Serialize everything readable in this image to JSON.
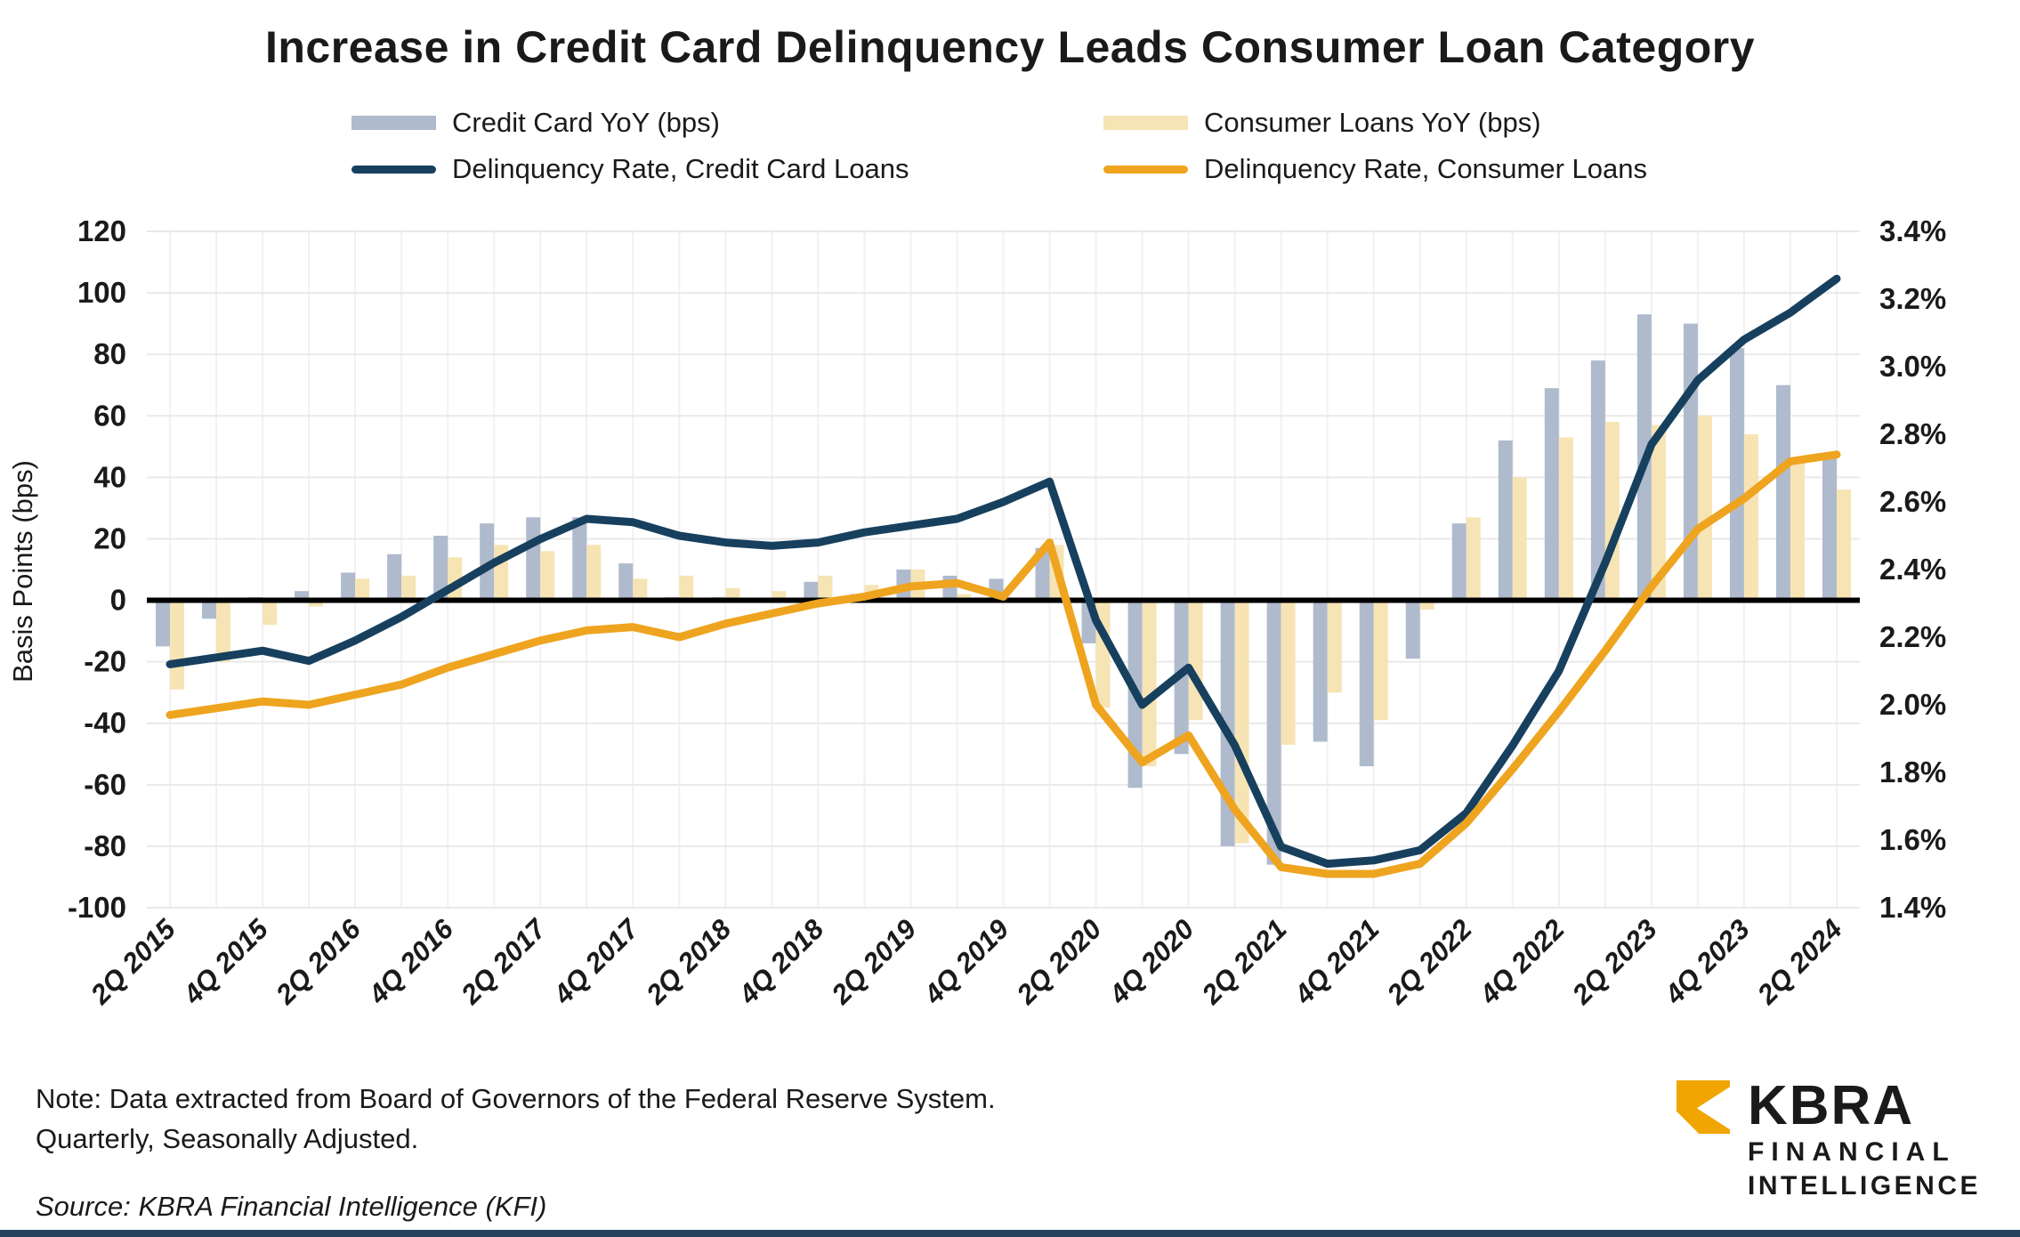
{
  "title": "Increase in Credit Card Delinquency Leads Consumer Loan Category",
  "legend": {
    "items": [
      {
        "label": "Credit Card YoY (bps)",
        "swatch": "bar",
        "color": "#AFBACD"
      },
      {
        "label": "Consumer Loans YoY (bps)",
        "swatch": "bar",
        "color": "#F7E4B4"
      },
      {
        "label": "Delinquency Rate, Credit Card Loans",
        "swatch": "line",
        "color": "#17405E"
      },
      {
        "label": "Delinquency Rate, Consumer Loans",
        "swatch": "line",
        "color": "#EEA41F"
      }
    ]
  },
  "axes": {
    "y_left": {
      "title": "Basis Points (bps)",
      "ticks": [
        120,
        100,
        80,
        60,
        40,
        20,
        0,
        -20,
        -40,
        -60,
        -80,
        -100
      ],
      "min": -100,
      "max": 120
    },
    "y_right": {
      "ticks": [
        "3.4%",
        "3.2%",
        "3.0%",
        "2.8%",
        "2.6%",
        "2.4%",
        "2.2%",
        "2.0%",
        "1.8%",
        "1.6%",
        "1.4%"
      ],
      "min": 1.4,
      "max": 3.4
    },
    "x_label_every": 2
  },
  "chart_data": {
    "type": "combo-bar-line",
    "title": "Increase in Credit Card Delinquency Leads Consumer Loan Category",
    "xlabel": "",
    "ylabel_left": "Basis Points (bps)",
    "ylim_left": [
      -100,
      120
    ],
    "ylim_right": [
      1.4,
      3.4
    ],
    "grid": "horizontal-and-vertical-light",
    "legend_position": "top",
    "categories": [
      "2Q 2015",
      "3Q 2015",
      "4Q 2015",
      "1Q 2016",
      "2Q 2016",
      "3Q 2016",
      "4Q 2016",
      "1Q 2017",
      "2Q 2017",
      "3Q 2017",
      "4Q 2017",
      "1Q 2018",
      "2Q 2018",
      "3Q 2018",
      "4Q 2018",
      "1Q 2019",
      "2Q 2019",
      "3Q 2019",
      "4Q 2019",
      "1Q 2020",
      "2Q 2020",
      "3Q 2020",
      "4Q 2020",
      "1Q 2021",
      "2Q 2021",
      "3Q 2021",
      "4Q 2021",
      "1Q 2022",
      "2Q 2022",
      "3Q 2022",
      "4Q 2022",
      "1Q 2023",
      "2Q 2023",
      "3Q 2023",
      "4Q 2023",
      "1Q 2024",
      "2Q 2024"
    ],
    "series": [
      {
        "name": "Credit Card YoY (bps)",
        "type": "bar",
        "axis": "left",
        "color": "#AFBACD",
        "values": [
          -15,
          -6,
          1,
          3,
          9,
          15,
          21,
          25,
          27,
          27,
          12,
          1,
          1,
          0,
          6,
          2,
          10,
          8,
          7,
          17,
          -14,
          -61,
          -50,
          -80,
          -86,
          -46,
          -54,
          -19,
          25,
          52,
          69,
          78,
          93,
          90,
          82,
          70,
          48
        ]
      },
      {
        "name": "Consumer Loans YoY (bps)",
        "type": "bar",
        "axis": "left",
        "color": "#F7E4B4",
        "values": [
          -29,
          -20,
          -8,
          -2,
          7,
          8,
          14,
          18,
          16,
          18,
          7,
          8,
          4,
          3,
          8,
          5,
          10,
          2,
          0,
          18,
          -35,
          -54,
          -39,
          -79,
          -47,
          -30,
          -39,
          -3,
          27,
          40,
          53,
          58,
          57,
          60,
          54,
          45,
          36
        ]
      },
      {
        "name": "Delinquency Rate, Credit Card Loans",
        "type": "line",
        "axis": "right",
        "color": "#17405E",
        "values": [
          2.12,
          2.14,
          2.16,
          2.13,
          2.19,
          2.26,
          2.34,
          2.42,
          2.49,
          2.55,
          2.54,
          2.5,
          2.48,
          2.47,
          2.48,
          2.51,
          2.53,
          2.55,
          2.6,
          2.66,
          2.25,
          2.0,
          2.11,
          1.88,
          1.58,
          1.53,
          1.54,
          1.57,
          1.68,
          1.88,
          2.1,
          2.42,
          2.77,
          2.96,
          3.08,
          3.16,
          3.26
        ]
      },
      {
        "name": "Delinquency Rate, Consumer Loans",
        "type": "line",
        "axis": "right",
        "color": "#EEA41F",
        "values": [
          1.97,
          1.99,
          2.01,
          2.0,
          2.03,
          2.06,
          2.11,
          2.15,
          2.19,
          2.22,
          2.23,
          2.2,
          2.24,
          2.27,
          2.3,
          2.32,
          2.35,
          2.36,
          2.32,
          2.48,
          2.0,
          1.83,
          1.91,
          1.69,
          1.52,
          1.5,
          1.5,
          1.53,
          1.65,
          1.81,
          1.98,
          2.16,
          2.35,
          2.52,
          2.61,
          2.72,
          2.74
        ]
      }
    ]
  },
  "footer": {
    "note_line1": "Note: Data extracted from Board of Governors of the Federal Reserve System.",
    "note_line2": "Quarterly, Seasonally Adjusted.",
    "source": "Source: KBRA Financial Intelligence (KFI)"
  },
  "logo": {
    "wordmark": "KBRA",
    "sub1": "FINANCIAL",
    "sub2": "INTELLIGENCE",
    "mark_color": "#F0A500"
  },
  "colors": {
    "zero_line": "#000000",
    "gridline": "#E9E9E9",
    "vertical_gridline": "#F1F1F1",
    "footer_strip": "#26425C",
    "text": "#1A1A1A"
  }
}
